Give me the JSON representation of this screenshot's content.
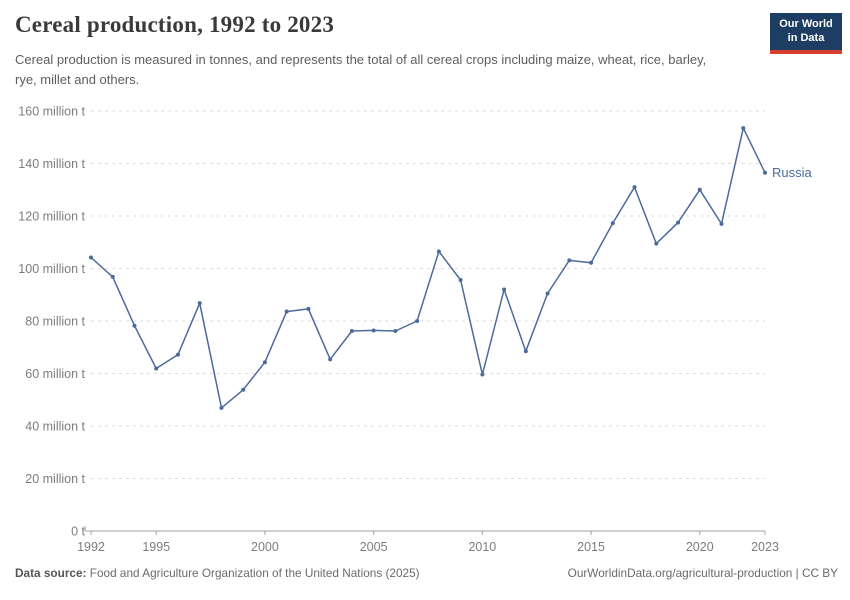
{
  "header": {
    "title": "Cereal production, 1992 to 2023",
    "subtitle": "Cereal production is measured in tonnes, and represents the total of all cereal crops including maize, wheat, rice, barley, rye, millet and others."
  },
  "logo": {
    "line1": "Our World",
    "line2": "in Data"
  },
  "chart_data": {
    "type": "line",
    "title": "Cereal production, 1992 to 2023",
    "unit": "million t",
    "x": [
      1992,
      1993,
      1994,
      1995,
      1996,
      1997,
      1998,
      1999,
      2000,
      2001,
      2002,
      2003,
      2004,
      2005,
      2006,
      2007,
      2008,
      2009,
      2010,
      2011,
      2012,
      2013,
      2014,
      2015,
      2016,
      2017,
      2018,
      2019,
      2020,
      2021,
      2022,
      2023
    ],
    "series": [
      {
        "name": "Russia",
        "values": [
          104.2,
          96.8,
          78.2,
          61.9,
          67.2,
          86.8,
          46.9,
          53.8,
          64.3,
          83.6,
          84.6,
          65.4,
          76.2,
          76.4,
          76.2,
          80.0,
          106.5,
          95.6,
          59.6,
          92.0,
          68.5,
          90.5,
          103.1,
          102.2,
          117.3,
          131.0,
          109.5,
          117.5,
          130.0,
          117.0,
          153.5,
          136.5
        ]
      }
    ],
    "end_label": "Russia",
    "ylim": [
      0,
      160
    ],
    "y_ticks": [
      0,
      20,
      40,
      60,
      80,
      100,
      120,
      140,
      160
    ],
    "y_tick_suffix": " million t",
    "y_tick_zero_label": "0 t",
    "x_ticks": [
      1992,
      1995,
      2000,
      2005,
      2010,
      2015,
      2020,
      2023
    ],
    "grid": "dashed horizontal",
    "legend_position": "end-of-line"
  },
  "colors": {
    "line": "#4C6A9C",
    "grid": "#dcdcdc",
    "axis": "#a6a6a6",
    "tick_text": "#7d7d7d",
    "logo_bg": "#1d3d63",
    "logo_red": "#d63e32"
  },
  "footer": {
    "datasource_label": "Data source:",
    "datasource_text": " Food and Agriculture Organization of the United Nations (2025)",
    "link": "OurWorldinData.org/agricultural-production | CC BY"
  }
}
